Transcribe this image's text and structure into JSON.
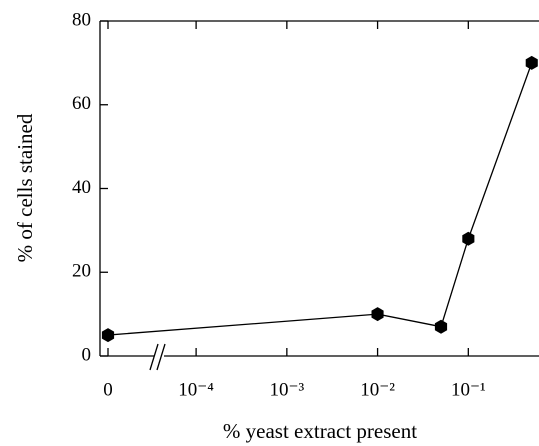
{
  "chart_data": {
    "type": "line",
    "x_label": "% yeast extract present",
    "y_label": "% of cells stained",
    "x": [
      0,
      0.01,
      0.05,
      0.1,
      0.5
    ],
    "series": [
      {
        "color": "#000000",
        "values": [
          5,
          10,
          7,
          28,
          70
        ]
      }
    ],
    "xscale": "log",
    "xlim": [
      4e-05,
      0.7
    ],
    "xticks": [
      0,
      {
        "value": 0.0001,
        "label": "10⁻⁴"
      },
      {
        "value": 0.001,
        "label": "10⁻³"
      },
      {
        "value": 0.01,
        "label": "10⁻²"
      },
      {
        "value": 0.1,
        "label": "10⁻¹"
      }
    ],
    "ylim": [
      0,
      80
    ],
    "yticks": [
      0,
      20,
      40,
      60,
      80
    ]
  }
}
